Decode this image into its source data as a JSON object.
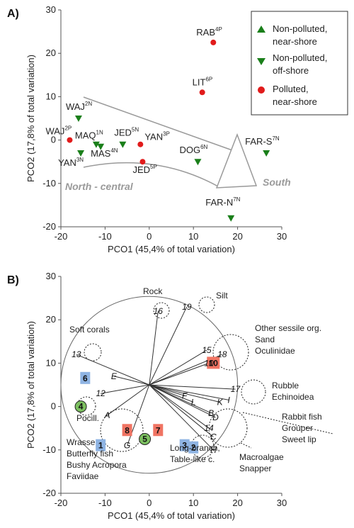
{
  "colors": {
    "green": "#1a7f1a",
    "red": "#e11b1b",
    "gray": "#9a9a9a",
    "blue_box": "#8fb4e3",
    "red_box": "#f07463",
    "green_box": "#7cc060"
  },
  "chart_data": [
    {
      "type": "scatter",
      "panel_label": "A)",
      "xlabel": "PCO1 (45,4% of total variation)",
      "ylabel": "PCO2 (17,8% of total variation)",
      "xlim": [
        -20,
        30
      ],
      "ylim": [
        -20,
        30
      ],
      "xticks": [
        "-20",
        "-10",
        "0",
        "10",
        "20",
        "30"
      ],
      "yticks": [
        "-20",
        "-10",
        "0",
        "10",
        "20",
        "30"
      ],
      "grid": false,
      "legend_position": "top-right",
      "legend": [
        {
          "label": "Non-polluted,",
          "label2": "near-shore",
          "marker": "triangle-up",
          "color": "#1a7f1a"
        },
        {
          "label": "Non-polluted,",
          "label2": "off-shore",
          "marker": "triangle-down",
          "color": "#1a7f1a"
        },
        {
          "label": "Polluted,",
          "label2": "near-shore",
          "marker": "circle",
          "color": "#e11b1b"
        }
      ],
      "series": [
        {
          "name": "Non-polluted, near-shore",
          "marker": "triangle-up",
          "points": []
        },
        {
          "name": "Non-polluted, off-shore",
          "marker": "triangle-down",
          "points": [
            {
              "x": -16,
              "y": 5,
              "label": "WAJ",
              "sup": "2N"
            },
            {
              "x": -15.5,
              "y": -3,
              "label": "YAN",
              "sup": "3N"
            },
            {
              "x": -12,
              "y": -1,
              "label": "MAQ",
              "sup": "1N"
            },
            {
              "x": -11,
              "y": -1.5,
              "label": "MAS",
              "sup": "4N"
            },
            {
              "x": -6,
              "y": -1,
              "label": "JED",
              "sup": "5N"
            },
            {
              "x": 11,
              "y": -5,
              "label": "DOG",
              "sup": "6N"
            },
            {
              "x": 26.5,
              "y": -3,
              "label": "FAR-S",
              "sup": "7N"
            },
            {
              "x": 18.5,
              "y": -18,
              "label": "FAR-N",
              "sup": "7N"
            }
          ]
        },
        {
          "name": "Polluted, near-shore",
          "marker": "circle",
          "points": [
            {
              "x": 14.5,
              "y": 22.5,
              "label": "RAB",
              "sup": "4P"
            },
            {
              "x": 12,
              "y": 11,
              "label": "LIT",
              "sup": "6P"
            },
            {
              "x": -18,
              "y": 0,
              "label": "WAJ",
              "sup": "2P"
            },
            {
              "x": -2,
              "y": -1,
              "label": "YAN",
              "sup": "3P"
            },
            {
              "x": -1.5,
              "y": -5,
              "label": "JED",
              "sup": "5P"
            }
          ]
        }
      ],
      "annotations": [
        "North - central",
        "South"
      ]
    },
    {
      "type": "scatter",
      "panel_label": "B)",
      "xlabel": "PCO1 (45,4% of total variation)",
      "ylabel": "PCO2 (17,8% of total variation)",
      "xlim": [
        -20,
        30
      ],
      "ylim": [
        -20,
        30
      ],
      "xticks": [
        "-20",
        "-10",
        "0",
        "10",
        "20",
        "30"
      ],
      "yticks": [
        "-20",
        "-10",
        "0",
        "10",
        "20",
        "30"
      ],
      "grid": false,
      "correlation_circle": {
        "center": [
          0,
          5
        ],
        "radius": 20
      },
      "vectors": [
        {
          "code": "16",
          "x": 2,
          "y": 22
        },
        {
          "code": "19",
          "x": 8.5,
          "y": 23
        },
        {
          "code": "15",
          "x": 13,
          "y": 13
        },
        {
          "code": "18",
          "x": 16.5,
          "y": 12
        },
        {
          "code": "10",
          "x": 13.5,
          "y": 10
        },
        {
          "code": "13",
          "x": -16.5,
          "y": 12
        },
        {
          "code": "E",
          "x": -8,
          "y": 7
        },
        {
          "code": "12",
          "x": -11,
          "y": 3
        },
        {
          "code": "17",
          "x": 19.5,
          "y": 4
        },
        {
          "code": "K",
          "x": 16,
          "y": 1
        },
        {
          "code": "I",
          "x": 18,
          "y": 1.5
        },
        {
          "code": "F",
          "x": 8,
          "y": 2.5
        },
        {
          "code": "L",
          "x": 10,
          "y": 1
        },
        {
          "code": "B",
          "x": 14,
          "y": -1.5
        },
        {
          "code": "D",
          "x": 15,
          "y": -2.5
        },
        {
          "code": "14",
          "x": 13.5,
          "y": -5
        },
        {
          "code": "C",
          "x": 14.5,
          "y": -7
        },
        {
          "code": "A",
          "x": -9.5,
          "y": -2
        },
        {
          "code": "G",
          "x": -5,
          "y": -9
        },
        {
          "code": "H",
          "x": 14.5,
          "y": -10
        }
      ],
      "groups": [
        {
          "text": "Rock"
        },
        {
          "text": "Silt"
        },
        {
          "text": "Soft corals"
        },
        {
          "text": "Other sessile org."
        },
        {
          "text": "Sand"
        },
        {
          "text": "Oculinidae"
        },
        {
          "text": "Rubble"
        },
        {
          "text": "Echinoidea"
        },
        {
          "text": "Rabbit fish"
        },
        {
          "text": "Grouper"
        },
        {
          "text": "Sweet lip"
        },
        {
          "text": "Macroalgae"
        },
        {
          "text": "Snapper"
        },
        {
          "text": "Long-branch,"
        },
        {
          "text": "Table-like c."
        },
        {
          "text": "Pocill."
        },
        {
          "text": "Wrasse"
        },
        {
          "text": "Butterfly fish"
        },
        {
          "text": "Bushy Acropora"
        },
        {
          "text": "Faviidae"
        }
      ],
      "sites": [
        {
          "num": "6",
          "x": -14.5,
          "y": 6.5,
          "type": "off-shore"
        },
        {
          "num": "4",
          "x": -15.5,
          "y": 0,
          "type": "near-shore"
        },
        {
          "num": "1",
          "x": -11,
          "y": -9,
          "type": "off-shore"
        },
        {
          "num": "8",
          "x": -5,
          "y": -5.5,
          "type": "polluted"
        },
        {
          "num": "5",
          "x": -1,
          "y": -7.5,
          "type": "near-shore"
        },
        {
          "num": "7",
          "x": 2,
          "y": -5.5,
          "type": "polluted"
        },
        {
          "num": "3",
          "x": 8,
          "y": -9,
          "type": "off-shore"
        },
        {
          "num": "2",
          "x": 10,
          "y": -9.5,
          "type": "off-shore"
        },
        {
          "num": "10",
          "x": 14.5,
          "y": 10,
          "type": "polluted"
        }
      ]
    }
  ]
}
